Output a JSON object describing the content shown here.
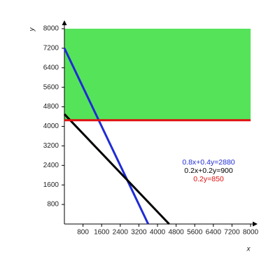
{
  "chart_data": {
    "type": "line",
    "x_label": "x",
    "y_label": "y",
    "xlim": [
      0,
      8000
    ],
    "ylim": [
      0,
      8000
    ],
    "xticks": [
      800,
      1600,
      2400,
      3200,
      4000,
      4800,
      5600,
      6400,
      7200,
      8000
    ],
    "yticks": [
      800,
      1600,
      2400,
      3200,
      4000,
      4800,
      5600,
      6400,
      7200,
      8000
    ],
    "region": {
      "color": "#55e35a",
      "x": [
        0,
        8000
      ],
      "lower": [
        4250,
        4250
      ],
      "upper": [
        8000,
        8000
      ]
    },
    "series": [
      {
        "name": "0.8x+0.4y=2880",
        "color": "#1f2bd6",
        "x": [
          0,
          3600
        ],
        "values": [
          7200,
          0
        ]
      },
      {
        "name": "0.2x+0.2y=900",
        "color": "#000000",
        "x": [
          0,
          4500
        ],
        "values": [
          4500,
          0
        ]
      },
      {
        "name": "0.2y=850",
        "color": "#e01010",
        "x": [
          0,
          8000
        ],
        "values": [
          4250,
          4250
        ]
      }
    ]
  }
}
